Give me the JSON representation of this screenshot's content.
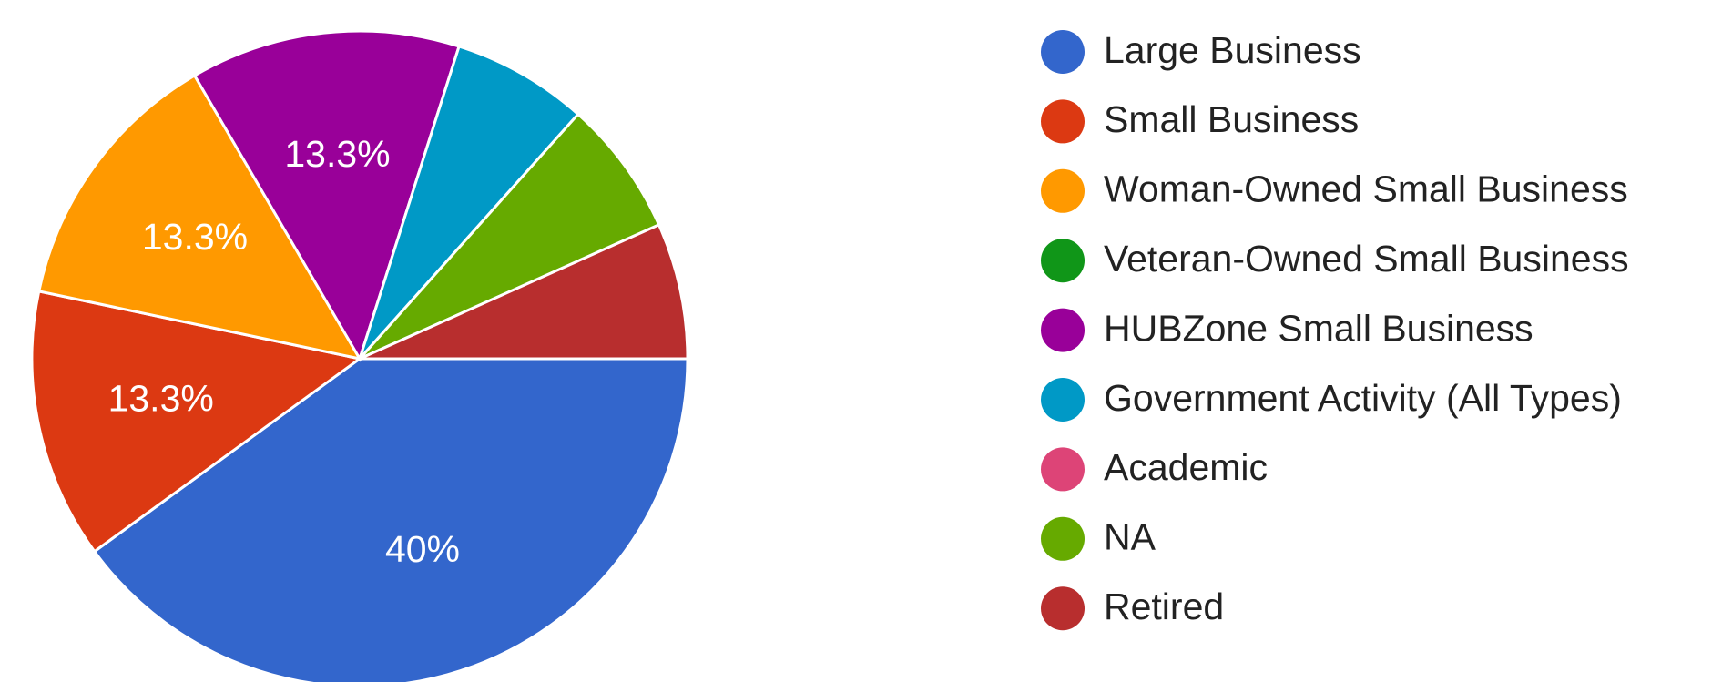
{
  "chart_data": {
    "type": "pie",
    "categories": [
      "Large Business",
      "Small Business",
      "Woman-Owned Small Business",
      "Veteran-Owned Small Business",
      "HUBZone Small Business",
      "Government Activity (All Types)",
      "Academic",
      "NA",
      "Retired"
    ],
    "values": [
      40,
      13.3,
      13.3,
      0,
      13.3,
      6.7,
      0,
      6.7,
      6.7
    ],
    "value_labels": [
      "40%",
      "13.3%",
      "13.3%",
      null,
      "13.3%",
      null,
      null,
      null,
      null
    ],
    "colors": [
      "#3366cc",
      "#dc3912",
      "#ff9900",
      "#109618",
      "#990099",
      "#0099c6",
      "#dd4477",
      "#66aa00",
      "#b82e2e"
    ],
    "legend": "right"
  }
}
